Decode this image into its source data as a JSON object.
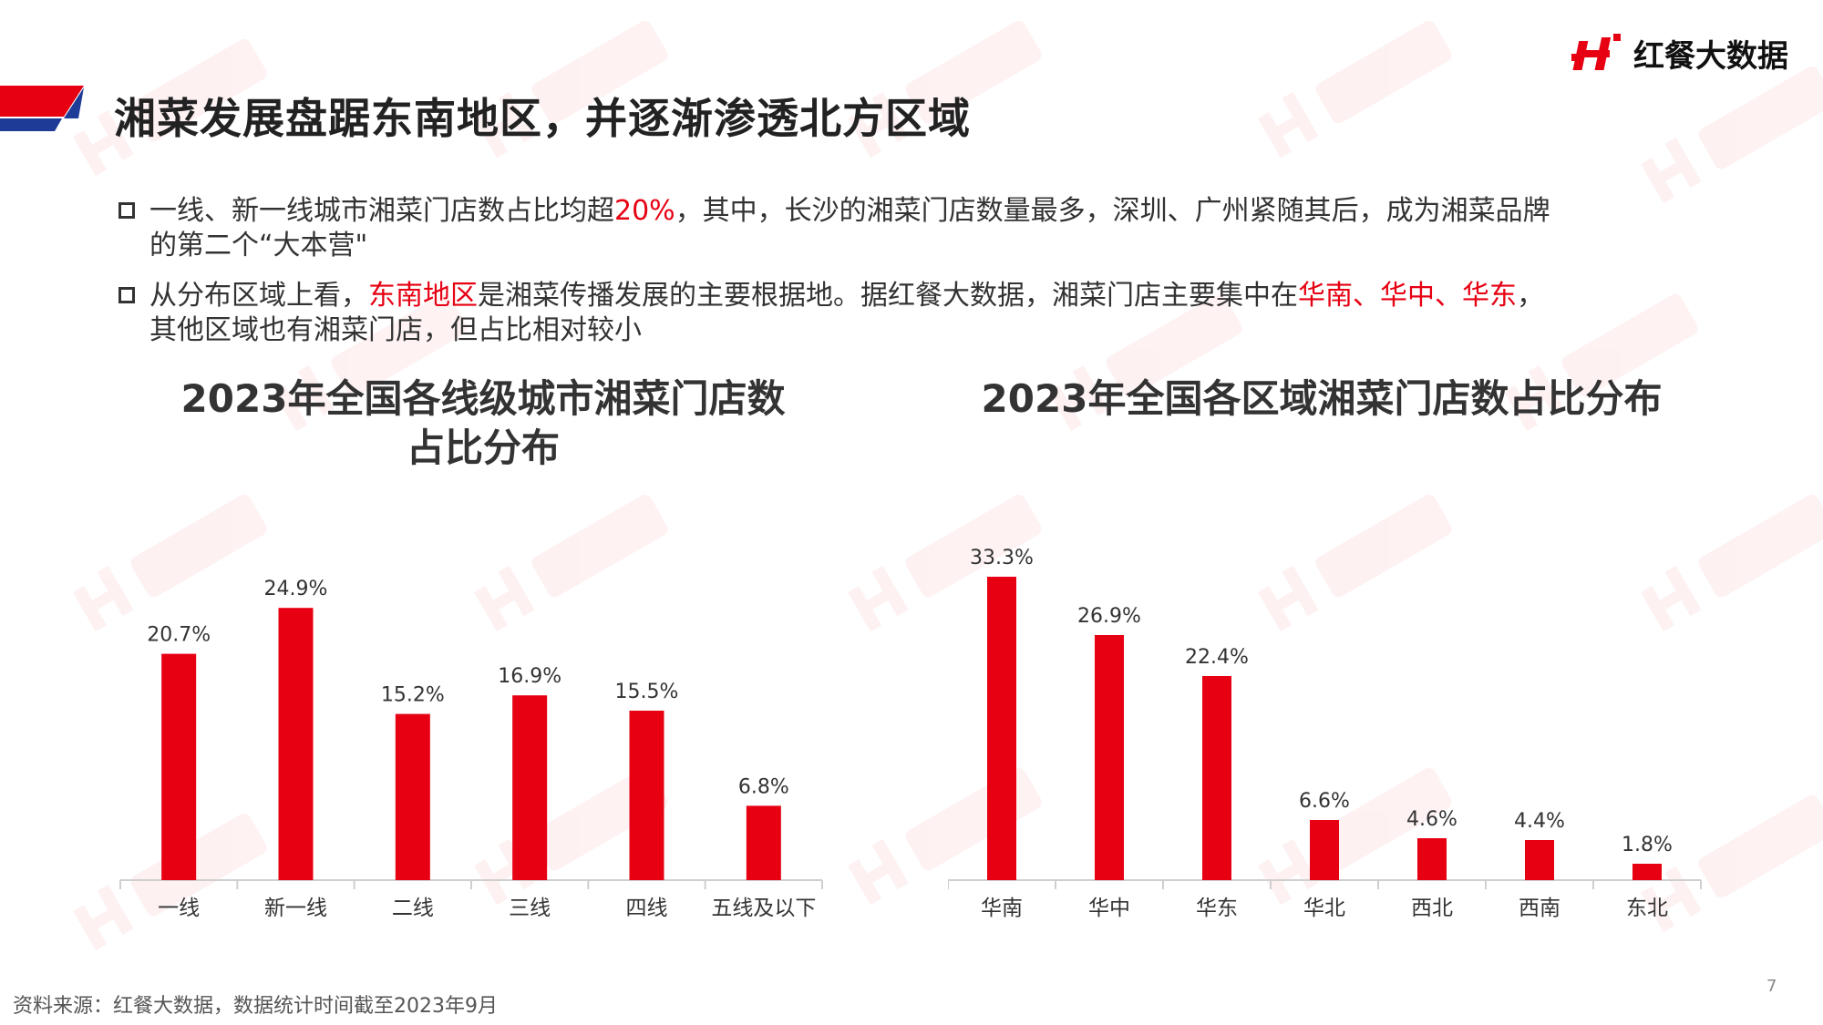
{
  "logo": {
    "text": "红餐大数据",
    "mark_color": "#e60012"
  },
  "header": {
    "title": "湘菜发展盘踞东南地区，并逐渐渗透北方区域"
  },
  "bullets": [
    {
      "pre": "一线、新一线城市湘菜门店数占比均超",
      "highlight": "20%",
      "post_line1": "，其中，长沙的湘菜门店数量最多，深圳、广州紧随其后，成为湘菜品牌",
      "line2": "的第二个“大本营\""
    },
    {
      "pre": "从分布区域上看，",
      "highlight": "东南地区",
      "mid": "是湘菜传播发展的主要根据地。据红餐大数据，湘菜门店主要集中在",
      "highlight2": "华南、华中、华东",
      "post_line1": "，",
      "line2": "其他区域也有湘菜门店，但占比相对较小"
    }
  ],
  "chart_data": [
    {
      "type": "bar",
      "title_line1": "2023年全国各线级城市湘菜门店数",
      "title_line2": "占比分布",
      "categories": [
        "一线",
        "新一线",
        "二线",
        "三线",
        "四线",
        "五线及以下"
      ],
      "values": [
        20.7,
        24.9,
        15.2,
        16.9,
        15.5,
        6.8
      ],
      "labels": [
        "20.7%",
        "24.9%",
        "15.2%",
        "16.9%",
        "15.5%",
        "6.8%"
      ],
      "unit": "%",
      "ylim": [
        0,
        30
      ],
      "grid": false,
      "color": "#e60012"
    },
    {
      "type": "bar",
      "title_line1": "2023年全国各区域湘菜门店数占比分布",
      "categories": [
        "华南",
        "华中",
        "华东",
        "华北",
        "西北",
        "西南",
        "东北"
      ],
      "values": [
        33.3,
        26.9,
        22.4,
        6.6,
        4.6,
        4.4,
        1.8
      ],
      "labels": [
        "33.3%",
        "26.9%",
        "22.4%",
        "6.6%",
        "4.6%",
        "4.4%",
        "1.8%"
      ],
      "unit": "%",
      "ylim": [
        0,
        36
      ],
      "grid": false,
      "color": "#e60012"
    }
  ],
  "footer": {
    "source": "资料来源：红餐大数据，数据统计时间截至2023年9月",
    "page_number": "7"
  },
  "colors": {
    "accent_red": "#e60012",
    "accent_blue": "#1d3b97"
  }
}
